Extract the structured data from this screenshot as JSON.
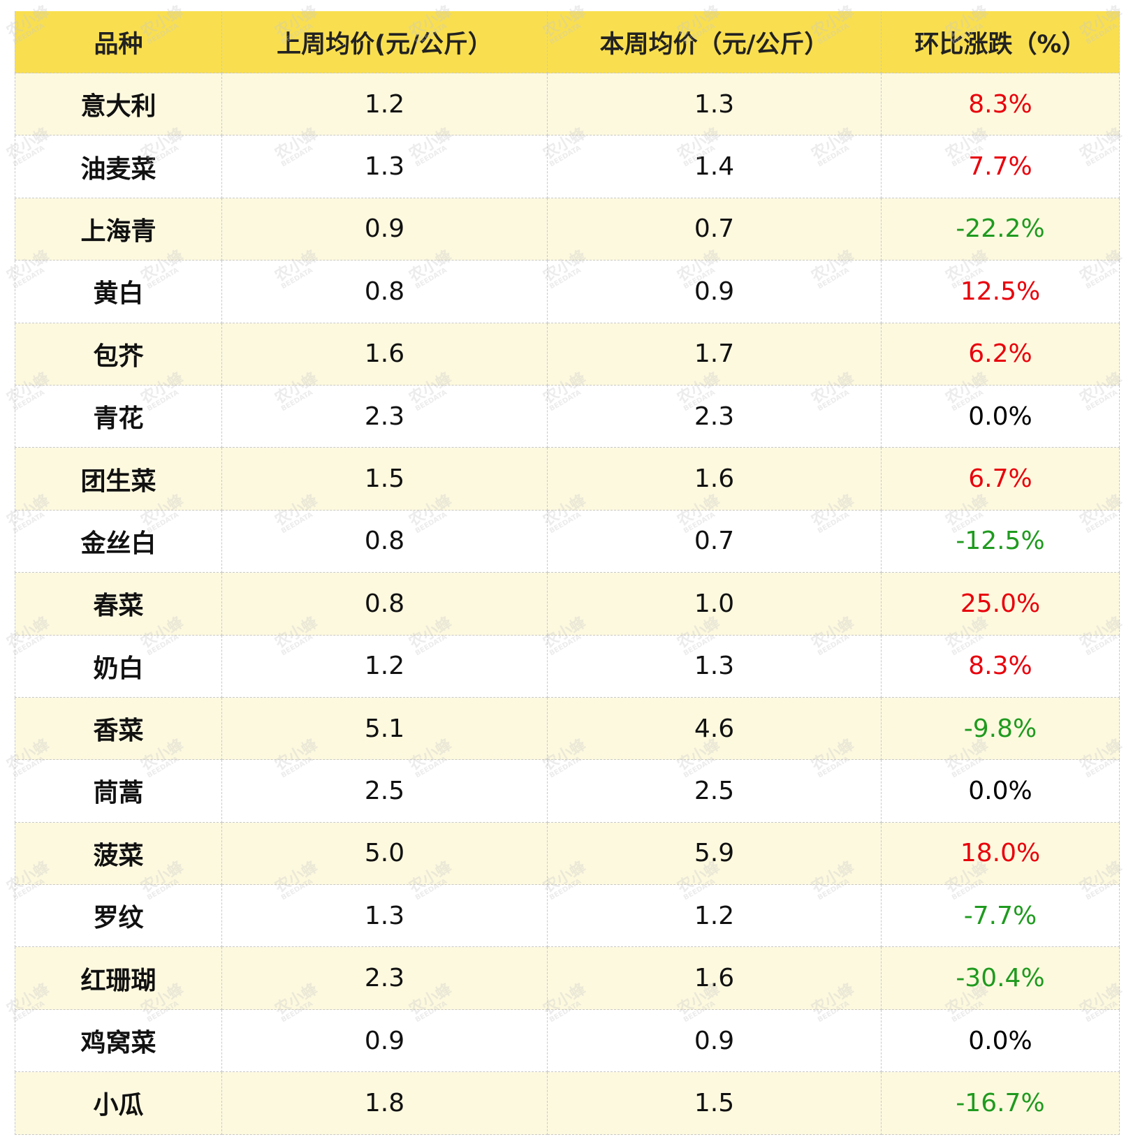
{
  "watermark": {
    "brand": "农小蜂",
    "sub": "BEEDATA"
  },
  "colors": {
    "up": "#e8000b",
    "down": "#1f9a1f",
    "flat": "#000000"
  },
  "table": {
    "header": [
      "品种",
      "上周均价(元/公斤）",
      "本周均价（元/公斤）",
      "环比涨跌（%）"
    ],
    "rows": [
      [
        "意大利",
        "1.2",
        "1.3",
        "8.3%"
      ],
      [
        "油麦菜",
        "1.3",
        "1.4",
        "7.7%"
      ],
      [
        "上海青",
        "0.9",
        "0.7",
        "-22.2%"
      ],
      [
        "黄白",
        "0.8",
        "0.9",
        "12.5%"
      ],
      [
        "包芥",
        "1.6",
        "1.7",
        "6.2%"
      ],
      [
        "青花",
        "2.3",
        "2.3",
        "0.0%"
      ],
      [
        "团生菜",
        "1.5",
        "1.6",
        "6.7%"
      ],
      [
        "金丝白",
        "0.8",
        "0.7",
        "-12.5%"
      ],
      [
        "春菜",
        "0.8",
        "1.0",
        "25.0%"
      ],
      [
        "奶白",
        "1.2",
        "1.3",
        "8.3%"
      ],
      [
        "香菜",
        "5.1",
        "4.6",
        "-9.8%"
      ],
      [
        "茼蒿",
        "2.5",
        "2.5",
        "0.0%"
      ],
      [
        "菠菜",
        "5.0",
        "5.9",
        "18.0%"
      ],
      [
        "罗纹",
        "1.3",
        "1.2",
        "-7.7%"
      ],
      [
        "红珊瑚",
        "2.3",
        "1.6",
        "-30.4%"
      ],
      [
        "鸡窝菜",
        "0.9",
        "0.9",
        "0.0%"
      ],
      [
        "小瓜",
        "1.8",
        "1.5",
        "-16.7%"
      ]
    ]
  }
}
